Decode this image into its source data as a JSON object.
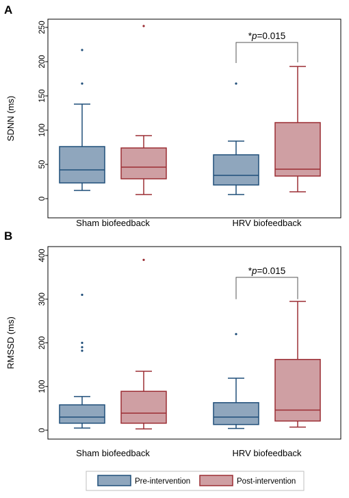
{
  "chart_data": [
    {
      "panel": "A",
      "type": "box",
      "ylabel": "SDNN (ms)",
      "ylim": [
        0,
        250
      ],
      "yticks": [
        0,
        50,
        100,
        150,
        200,
        250
      ],
      "categories": [
        "Sham biofeedback",
        "HRV biofeedback"
      ],
      "series": [
        {
          "name": "Pre-intervention",
          "boxes": [
            {
              "whisker_low": 12,
              "q1": 23,
              "median": 42,
              "q3": 76,
              "whisker_high": 138,
              "outliers": [
                168,
                217
              ]
            },
            {
              "whisker_low": 6,
              "q1": 20,
              "median": 34,
              "q3": 64,
              "whisker_high": 84,
              "outliers": [
                168
              ]
            }
          ]
        },
        {
          "name": "Post-intervention",
          "boxes": [
            {
              "whisker_low": 6,
              "q1": 29,
              "median": 46,
              "q3": 74,
              "whisker_high": 92,
              "outliers": [
                252
              ]
            },
            {
              "whisker_low": 10,
              "q1": 33,
              "median": 43,
              "q3": 111,
              "whisker_high": 193,
              "outliers": []
            }
          ]
        }
      ],
      "annotation": {
        "prefix": "*",
        "p_symbol": "p",
        "value_text": "=0.015",
        "category_index": 1,
        "bracket_left_y": 198,
        "bracket_right_y": 199,
        "bracket_top_y": 228
      }
    },
    {
      "panel": "B",
      "type": "box",
      "ylabel": "RMSSD (ms)",
      "ylim": [
        0,
        400
      ],
      "yticks": [
        0,
        100,
        200,
        300,
        400
      ],
      "categories": [
        "Sham biofeedback",
        "HRV biofeedback"
      ],
      "series": [
        {
          "name": "Pre-intervention",
          "boxes": [
            {
              "whisker_low": 5,
              "q1": 16,
              "median": 30,
              "q3": 58,
              "whisker_high": 77,
              "outliers": [
                182,
                190,
                200,
                310
              ]
            },
            {
              "whisker_low": 4,
              "q1": 13,
              "median": 30,
              "q3": 63,
              "whisker_high": 119,
              "outliers": [
                220
              ]
            }
          ]
        },
        {
          "name": "Post-intervention",
          "boxes": [
            {
              "whisker_low": 3,
              "q1": 16,
              "median": 39,
              "q3": 89,
              "whisker_high": 135,
              "outliers": [
                390
              ]
            },
            {
              "whisker_low": 7,
              "q1": 21,
              "median": 46,
              "q3": 162,
              "whisker_high": 295,
              "outliers": []
            }
          ]
        }
      ],
      "annotation": {
        "prefix": "*",
        "p_symbol": "p",
        "value_text": "=0.015",
        "category_index": 1,
        "bracket_left_y": 300,
        "bracket_right_y": 300,
        "bracket_top_y": 350
      }
    }
  ],
  "legend": {
    "position": "bottom-center",
    "items": [
      {
        "label": "Pre-intervention",
        "fill": "#8fa6bd",
        "stroke": "#1f4e79"
      },
      {
        "label": "Post-intervention",
        "fill": "#cf9fa3",
        "stroke": "#9b2d33"
      }
    ]
  },
  "colors": {
    "pre_fill": "#8fa6bd",
    "pre_stroke": "#1f4e79",
    "post_fill": "#cf9fa3",
    "post_stroke": "#9b2d33",
    "outlier_pre": "#1f4e79",
    "outlier_post": "#9b2d33"
  }
}
